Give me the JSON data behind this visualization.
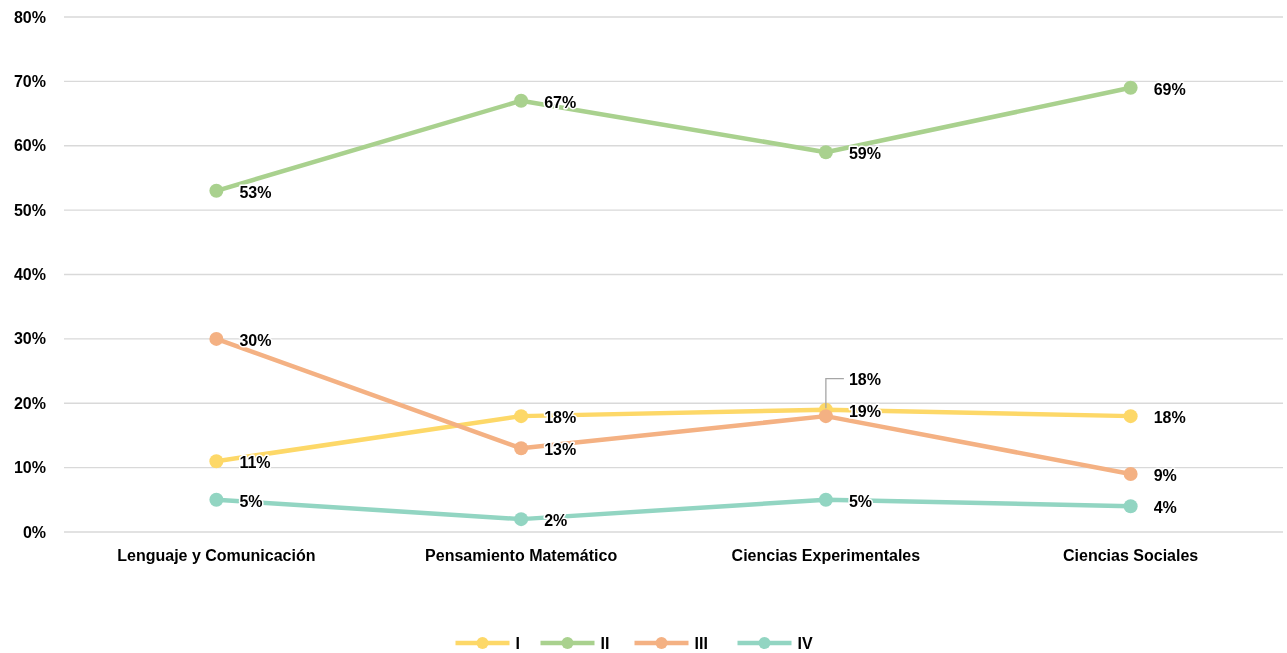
{
  "chart_data": {
    "type": "line",
    "categories": [
      "Lenguaje y Comunicación",
      "Pensamiento Matemático",
      "Ciencias Experimentales",
      "Ciencias Sociales"
    ],
    "series": [
      {
        "name": "I",
        "color": "#fdd868",
        "values": [
          11,
          18,
          19,
          18
        ],
        "value_labels": [
          "11%",
          "18%",
          "19%",
          "18%"
        ]
      },
      {
        "name": "II",
        "color": "#a9d18e",
        "values": [
          53,
          67,
          59,
          69
        ],
        "value_labels": [
          "53%",
          "67%",
          "59%",
          "69%"
        ]
      },
      {
        "name": "III",
        "color": "#f4b183",
        "values": [
          30,
          13,
          18,
          9
        ],
        "value_labels": [
          "30%",
          "13%",
          "18%",
          "9%"
        ]
      },
      {
        "name": "IV",
        "color": "#92d5c2",
        "values": [
          5,
          2,
          5,
          4
        ],
        "value_labels": [
          "5%",
          "2%",
          "5%",
          "4%"
        ]
      }
    ],
    "ylim": [
      0,
      80
    ],
    "yticks": [
      {
        "value": 0,
        "label": "0%"
      },
      {
        "value": 10,
        "label": "10%"
      },
      {
        "value": 20,
        "label": "20%"
      },
      {
        "value": 30,
        "label": "30%"
      },
      {
        "value": 40,
        "label": "40%"
      },
      {
        "value": 50,
        "label": "50%"
      },
      {
        "value": 60,
        "label": "60%"
      },
      {
        "value": 70,
        "label": "70%"
      },
      {
        "value": 80,
        "label": "80%"
      }
    ],
    "grid": "y",
    "legend": "bottom",
    "marker": "circle",
    "line_style": "solid"
  }
}
